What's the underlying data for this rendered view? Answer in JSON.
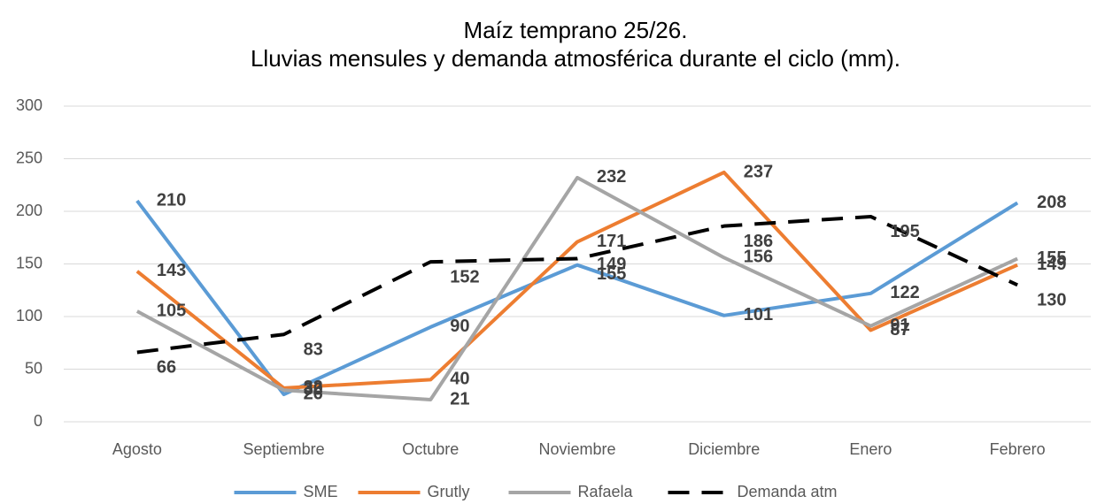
{
  "chart_data": {
    "type": "line",
    "title": "Maíz temprano 25/26.",
    "subtitle": "Lluvias mensules y demanda atmosférica durante el ciclo (mm).",
    "categories": [
      "Agosto",
      "Septiembre",
      "Octubre",
      "Noviembre",
      "Diciembre",
      "Enero",
      "Febrero"
    ],
    "series": [
      {
        "name": "SME",
        "color": "#5b9bd5",
        "values": [
          210,
          26,
          90,
          149,
          101,
          122,
          208
        ]
      },
      {
        "name": "Grutly",
        "color": "#ed7d31",
        "values": [
          143,
          32,
          40,
          171,
          237,
          87,
          149
        ]
      },
      {
        "name": "Rafaela",
        "color": "#a5a5a5",
        "values": [
          105,
          30,
          21,
          232,
          156,
          91,
          155
        ]
      },
      {
        "name": "Demanda atm",
        "color": "#000000",
        "dashed": true,
        "values": [
          66,
          83,
          152,
          155,
          186,
          195,
          130
        ]
      }
    ],
    "ylim": [
      0,
      300
    ],
    "yticks": [
      0,
      50,
      100,
      150,
      200,
      250,
      300
    ],
    "grid": true,
    "legend": "bottom"
  }
}
